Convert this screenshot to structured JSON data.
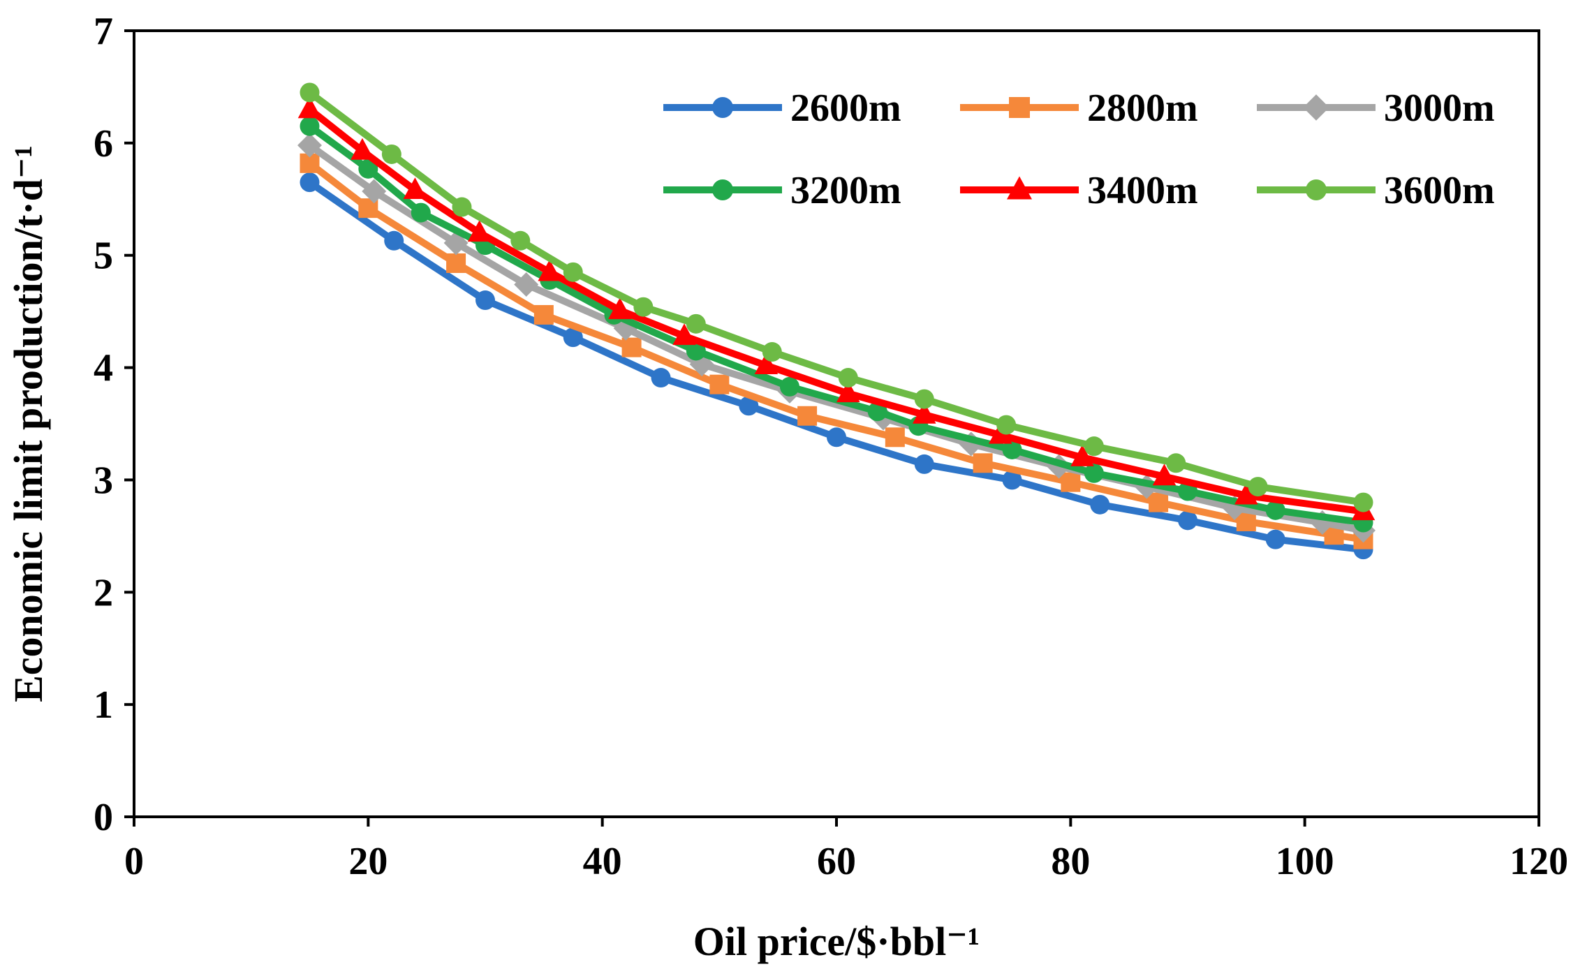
{
  "chart_data": {
    "type": "line",
    "title": "",
    "xlabel": "Oil price/$·bbl⁻¹",
    "ylabel": "Economic limit production/t·d⁻¹",
    "xlim": [
      0,
      120
    ],
    "ylim": [
      0,
      7
    ],
    "xticks": [
      0,
      20,
      40,
      60,
      80,
      100,
      120
    ],
    "yticks": [
      0,
      1,
      2,
      3,
      4,
      5,
      6,
      7
    ],
    "grid": false,
    "legend": "top-right",
    "series": [
      {
        "name": "2600m",
        "color": "#2E75C8",
        "marker": "circle",
        "points": [
          [
            15,
            5.65
          ],
          [
            22.2,
            5.13
          ],
          [
            30,
            4.6
          ],
          [
            37.5,
            4.27
          ],
          [
            45,
            3.91
          ],
          [
            52.5,
            3.66
          ],
          [
            60,
            3.38
          ],
          [
            67.5,
            3.14
          ],
          [
            75,
            3.0
          ],
          [
            82.5,
            2.78
          ],
          [
            90,
            2.64
          ],
          [
            97.5,
            2.47
          ],
          [
            105,
            2.38
          ]
        ]
      },
      {
        "name": "2800m",
        "color": "#F5883A",
        "marker": "square",
        "points": [
          [
            15,
            5.82
          ],
          [
            20,
            5.42
          ],
          [
            27.5,
            4.93
          ],
          [
            35,
            4.47
          ],
          [
            42.5,
            4.18
          ],
          [
            50,
            3.85
          ],
          [
            57.5,
            3.57
          ],
          [
            65,
            3.38
          ],
          [
            72.5,
            3.15
          ],
          [
            80,
            2.98
          ],
          [
            87.5,
            2.8
          ],
          [
            95,
            2.63
          ],
          [
            102.5,
            2.51
          ],
          [
            105,
            2.47
          ]
        ]
      },
      {
        "name": "3000m",
        "color": "#A5A5A5",
        "marker": "diamond",
        "points": [
          [
            15,
            5.98
          ],
          [
            20.5,
            5.57
          ],
          [
            27.5,
            5.11
          ],
          [
            33.5,
            4.74
          ],
          [
            42,
            4.35
          ],
          [
            48.5,
            4.03
          ],
          [
            56,
            3.79
          ],
          [
            64,
            3.55
          ],
          [
            71.5,
            3.32
          ],
          [
            79,
            3.12
          ],
          [
            86.5,
            2.94
          ],
          [
            94,
            2.75
          ],
          [
            101.5,
            2.62
          ],
          [
            105,
            2.55
          ]
        ]
      },
      {
        "name": "3200m",
        "color": "#21A84B",
        "marker": "circle",
        "points": [
          [
            15,
            6.15
          ],
          [
            20,
            5.77
          ],
          [
            24.5,
            5.38
          ],
          [
            30,
            5.09
          ],
          [
            35.5,
            4.78
          ],
          [
            41,
            4.47
          ],
          [
            48,
            4.15
          ],
          [
            56,
            3.83
          ],
          [
            63.5,
            3.61
          ],
          [
            67,
            3.48
          ],
          [
            75,
            3.27
          ],
          [
            82,
            3.06
          ],
          [
            90,
            2.9
          ],
          [
            97.5,
            2.73
          ],
          [
            105,
            2.62
          ]
        ]
      },
      {
        "name": "3400m",
        "color": "#FF0000",
        "marker": "triangle",
        "points": [
          [
            15,
            6.3
          ],
          [
            19.5,
            5.93
          ],
          [
            24,
            5.58
          ],
          [
            29.5,
            5.2
          ],
          [
            35.5,
            4.85
          ],
          [
            41.5,
            4.51
          ],
          [
            47,
            4.28
          ],
          [
            54,
            4.02
          ],
          [
            61,
            3.77
          ],
          [
            67.5,
            3.58
          ],
          [
            74,
            3.4
          ],
          [
            81,
            3.2
          ],
          [
            88,
            3.03
          ],
          [
            95,
            2.86
          ],
          [
            105,
            2.72
          ]
        ]
      },
      {
        "name": "3600m",
        "color": "#6DBA45",
        "marker": "circle",
        "points": [
          [
            15,
            6.45
          ],
          [
            22,
            5.9
          ],
          [
            28,
            5.43
          ],
          [
            33,
            5.13
          ],
          [
            37.5,
            4.85
          ],
          [
            43.5,
            4.54
          ],
          [
            48,
            4.39
          ],
          [
            54.5,
            4.14
          ],
          [
            61,
            3.91
          ],
          [
            67.5,
            3.72
          ],
          [
            74.5,
            3.49
          ],
          [
            82,
            3.3
          ],
          [
            89,
            3.15
          ],
          [
            96,
            2.94
          ],
          [
            105,
            2.8
          ]
        ]
      }
    ]
  }
}
